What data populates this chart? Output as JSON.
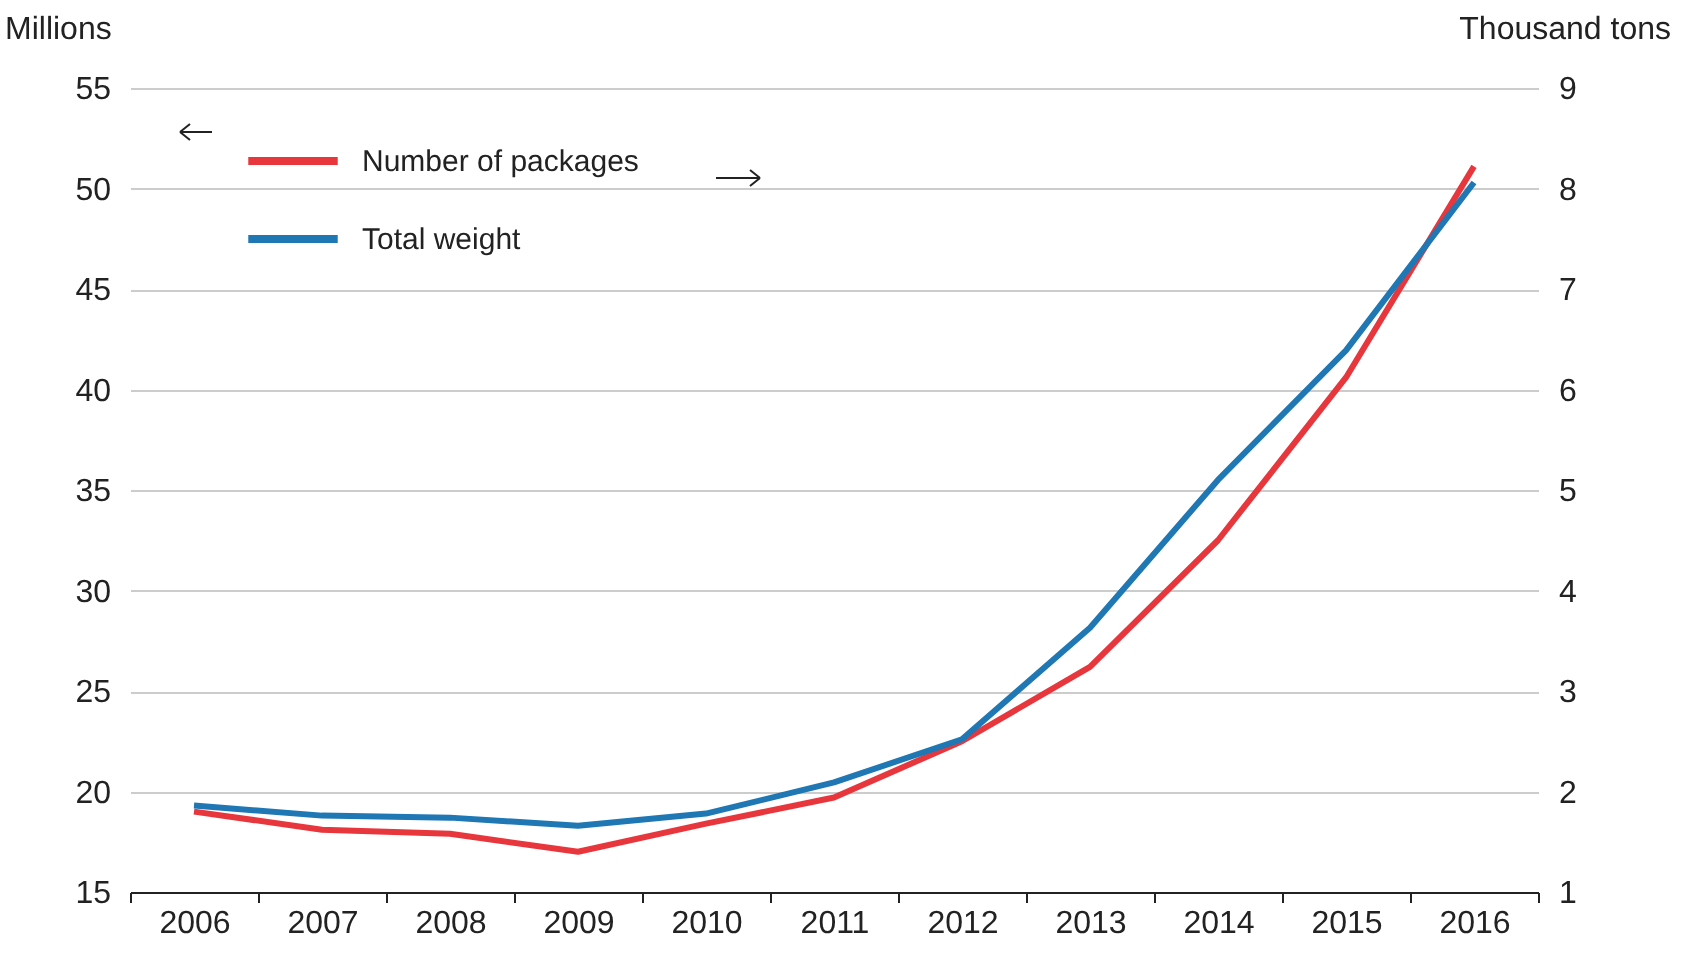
{
  "chart_data": {
    "type": "line",
    "categories": [
      "2006",
      "2007",
      "2008",
      "2009",
      "2010",
      "2011",
      "2012",
      "2013",
      "2014",
      "2015",
      "2016"
    ],
    "series": [
      {
        "name": "Number of packages",
        "color": "#e8363d",
        "axis": "y",
        "values": [
          19.0,
          18.1,
          17.9,
          17.0,
          18.4,
          19.7,
          22.5,
          26.2,
          32.5,
          40.6,
          51.1
        ]
      },
      {
        "name": "Total weight",
        "color": "#1f77b4",
        "axis": "y2",
        "values": [
          1.86,
          1.76,
          1.74,
          1.66,
          1.78,
          2.09,
          2.52,
          3.63,
          5.1,
          6.39,
          8.06
        ]
      }
    ],
    "ylabel": "Millions",
    "y2label": "Thousand tons",
    "ylim": [
      15,
      55
    ],
    "yticks": [
      15,
      20,
      25,
      30,
      35,
      40,
      45,
      50,
      55
    ],
    "y2lim": [
      1,
      9
    ],
    "y2ticks": [
      1,
      2,
      3,
      4,
      5,
      6,
      7,
      8,
      9
    ],
    "grid": "y",
    "legend": "top left",
    "marker": "none",
    "line_style": "solid"
  }
}
